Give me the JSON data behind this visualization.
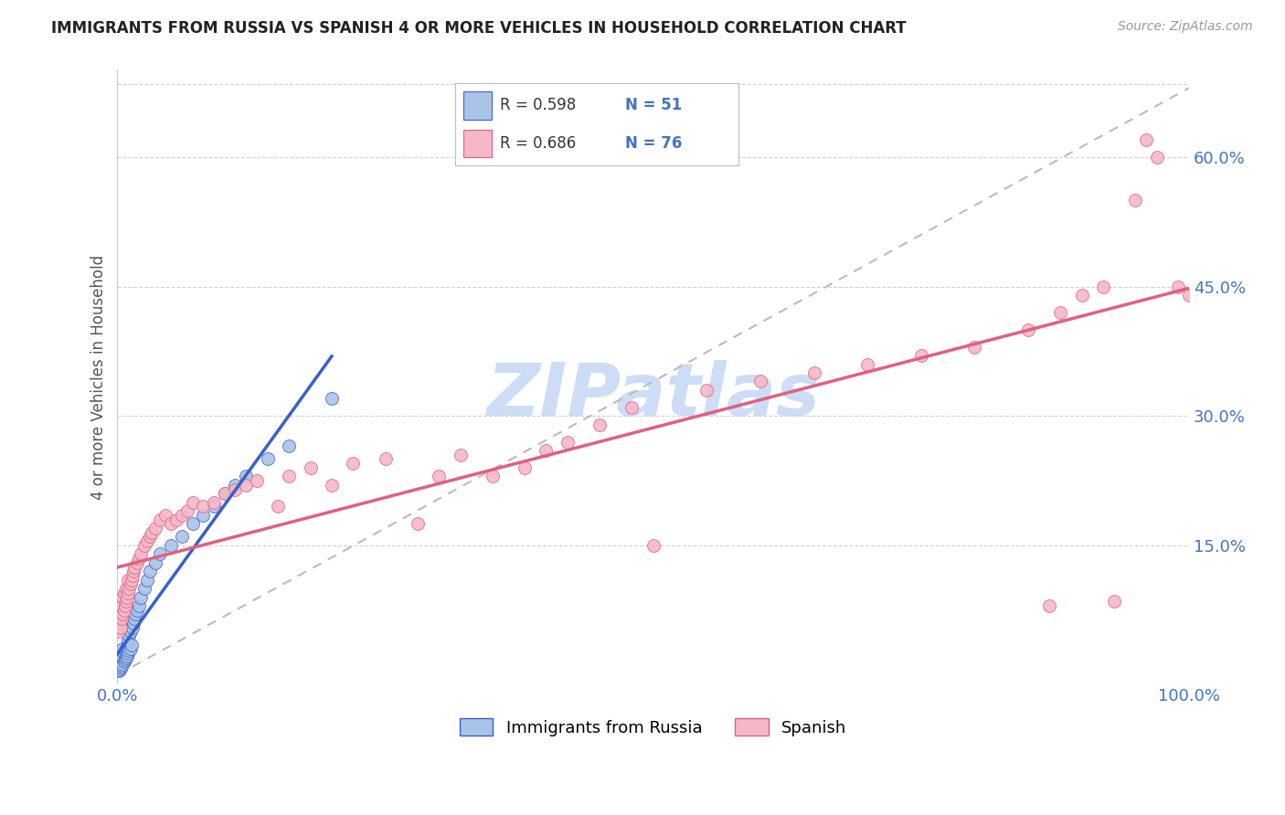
{
  "title": "IMMIGRANTS FROM RUSSIA VS SPANISH 4 OR MORE VEHICLES IN HOUSEHOLD CORRELATION CHART",
  "source": "Source: ZipAtlas.com",
  "ylabel": "4 or more Vehicles in Household",
  "legend_label1": "Immigrants from Russia",
  "legend_label2": "Spanish",
  "R1": 0.598,
  "N1": 51,
  "R2": 0.686,
  "N2": 76,
  "xlim": [
    0.0,
    1.0
  ],
  "ylim": [
    -0.01,
    0.7
  ],
  "xticks": [
    0.0,
    1.0
  ],
  "xtick_labels": [
    "0.0%",
    "100.0%"
  ],
  "yticks": [
    0.15,
    0.3,
    0.45,
    0.6
  ],
  "ytick_labels": [
    "15.0%",
    "30.0%",
    "45.0%",
    "60.0%"
  ],
  "color_blue": "#aac4e8",
  "color_pink": "#f5b8c8",
  "line_blue": "#3a5fcd",
  "line_pink": "#e06080",
  "watermark": "ZIPatlas",
  "watermark_color": "#ccddf5",
  "background_color": "#ffffff",
  "grid_color": "#cccccc",
  "blue_x": [
    0.001,
    0.001,
    0.002,
    0.002,
    0.002,
    0.003,
    0.003,
    0.003,
    0.004,
    0.004,
    0.005,
    0.005,
    0.005,
    0.006,
    0.006,
    0.007,
    0.007,
    0.008,
    0.008,
    0.009,
    0.009,
    0.01,
    0.01,
    0.011,
    0.011,
    0.012,
    0.012,
    0.013,
    0.014,
    0.015,
    0.016,
    0.017,
    0.018,
    0.02,
    0.022,
    0.025,
    0.028,
    0.03,
    0.035,
    0.04,
    0.05,
    0.06,
    0.07,
    0.08,
    0.09,
    0.1,
    0.11,
    0.12,
    0.14,
    0.16,
    0.2
  ],
  "blue_y": [
    0.005,
    0.008,
    0.006,
    0.01,
    0.015,
    0.008,
    0.012,
    0.02,
    0.01,
    0.018,
    0.012,
    0.02,
    0.03,
    0.015,
    0.025,
    0.018,
    0.028,
    0.02,
    0.03,
    0.022,
    0.032,
    0.025,
    0.04,
    0.028,
    0.045,
    0.03,
    0.05,
    0.035,
    0.055,
    0.06,
    0.065,
    0.07,
    0.075,
    0.08,
    0.09,
    0.1,
    0.11,
    0.12,
    0.13,
    0.14,
    0.15,
    0.16,
    0.175,
    0.185,
    0.195,
    0.21,
    0.22,
    0.23,
    0.25,
    0.265,
    0.32
  ],
  "pink_x": [
    0.001,
    0.002,
    0.003,
    0.003,
    0.004,
    0.004,
    0.005,
    0.005,
    0.006,
    0.006,
    0.007,
    0.008,
    0.008,
    0.009,
    0.01,
    0.01,
    0.011,
    0.012,
    0.013,
    0.014,
    0.015,
    0.016,
    0.018,
    0.02,
    0.022,
    0.025,
    0.028,
    0.03,
    0.032,
    0.035,
    0.04,
    0.045,
    0.05,
    0.055,
    0.06,
    0.065,
    0.07,
    0.08,
    0.09,
    0.1,
    0.11,
    0.12,
    0.13,
    0.15,
    0.16,
    0.18,
    0.2,
    0.22,
    0.25,
    0.28,
    0.3,
    0.32,
    0.35,
    0.38,
    0.4,
    0.42,
    0.45,
    0.48,
    0.5,
    0.55,
    0.6,
    0.65,
    0.7,
    0.75,
    0.8,
    0.85,
    0.88,
    0.9,
    0.92,
    0.95,
    0.97,
    0.99,
    1.0,
    0.87,
    0.93,
    0.96
  ],
  "pink_y": [
    0.05,
    0.06,
    0.055,
    0.07,
    0.065,
    0.08,
    0.07,
    0.09,
    0.075,
    0.095,
    0.08,
    0.085,
    0.1,
    0.09,
    0.095,
    0.11,
    0.1,
    0.105,
    0.11,
    0.115,
    0.12,
    0.125,
    0.13,
    0.135,
    0.14,
    0.15,
    0.155,
    0.16,
    0.165,
    0.17,
    0.18,
    0.185,
    0.175,
    0.18,
    0.185,
    0.19,
    0.2,
    0.195,
    0.2,
    0.21,
    0.215,
    0.22,
    0.225,
    0.195,
    0.23,
    0.24,
    0.22,
    0.245,
    0.25,
    0.175,
    0.23,
    0.255,
    0.23,
    0.24,
    0.26,
    0.27,
    0.29,
    0.31,
    0.15,
    0.33,
    0.34,
    0.35,
    0.36,
    0.37,
    0.38,
    0.4,
    0.42,
    0.44,
    0.45,
    0.55,
    0.6,
    0.45,
    0.44,
    0.08,
    0.085,
    0.62
  ]
}
